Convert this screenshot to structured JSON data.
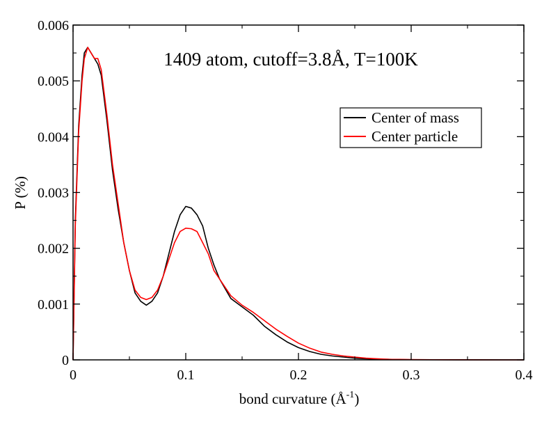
{
  "chart_data": {
    "type": "line",
    "title": "1409 atom, cutoff=3.8Å, T=100K",
    "xlabel": "bond curvature (Å",
    "xlabel_superscript": "-1",
    "xlabel_suffix": ")",
    "ylabel": "P (%)",
    "xlim": [
      0,
      0.4
    ],
    "ylim": [
      0,
      0.006
    ],
    "x_ticks": [
      "0",
      "0.1",
      "0.2",
      "0.3",
      "0.4"
    ],
    "y_ticks": [
      "0",
      "0.001",
      "0.002",
      "0.003",
      "0.004",
      "0.005",
      "0.006"
    ],
    "grid": false,
    "legend_position": "top-right",
    "series": [
      {
        "name": "Center of mass",
        "color": "#000000",
        "x": [
          0,
          0.002,
          0.005,
          0.008,
          0.01,
          0.013,
          0.016,
          0.019,
          0.022,
          0.025,
          0.03,
          0.035,
          0.04,
          0.045,
          0.05,
          0.055,
          0.06,
          0.065,
          0.07,
          0.075,
          0.08,
          0.085,
          0.09,
          0.095,
          0.1,
          0.105,
          0.11,
          0.115,
          0.12,
          0.125,
          0.13,
          0.14,
          0.15,
          0.16,
          0.17,
          0.18,
          0.19,
          0.2,
          0.21,
          0.22,
          0.23,
          0.24,
          0.25,
          0.26,
          0.27,
          0.28,
          0.29,
          0.3,
          0.32,
          0.34,
          0.36,
          0.38,
          0.4
        ],
        "y": [
          0,
          0.0025,
          0.0042,
          0.0051,
          0.0055,
          0.0056,
          0.0055,
          0.0054,
          0.0053,
          0.0051,
          0.0043,
          0.0034,
          0.0027,
          0.0021,
          0.0016,
          0.0012,
          0.00105,
          0.00098,
          0.00105,
          0.0012,
          0.0015,
          0.0019,
          0.0023,
          0.0026,
          0.00275,
          0.00272,
          0.0026,
          0.0024,
          0.002,
          0.0017,
          0.00145,
          0.0011,
          0.00095,
          0.0008,
          0.0006,
          0.00045,
          0.00032,
          0.00022,
          0.00015,
          0.0001,
          7e-05,
          5e-05,
          3e-05,
          2e-05,
          1e-05,
          1e-05,
          5e-06,
          3e-06,
          2e-06,
          1e-06,
          5e-07,
          0,
          0
        ]
      },
      {
        "name": "Center particle",
        "color": "#ff0000",
        "x": [
          0,
          0.002,
          0.005,
          0.008,
          0.01,
          0.013,
          0.016,
          0.019,
          0.022,
          0.025,
          0.03,
          0.035,
          0.04,
          0.045,
          0.05,
          0.055,
          0.06,
          0.065,
          0.07,
          0.075,
          0.08,
          0.085,
          0.09,
          0.095,
          0.1,
          0.105,
          0.11,
          0.115,
          0.12,
          0.125,
          0.13,
          0.14,
          0.15,
          0.16,
          0.17,
          0.18,
          0.19,
          0.2,
          0.21,
          0.22,
          0.23,
          0.24,
          0.25,
          0.26,
          0.27,
          0.28,
          0.29,
          0.3,
          0.32,
          0.34,
          0.36,
          0.38,
          0.4
        ],
        "y": [
          0,
          0.0024,
          0.0041,
          0.005,
          0.0054,
          0.0056,
          0.0055,
          0.0054,
          0.0054,
          0.0052,
          0.0044,
          0.0035,
          0.0028,
          0.0021,
          0.0016,
          0.00125,
          0.00112,
          0.00108,
          0.00112,
          0.00125,
          0.0015,
          0.0018,
          0.0021,
          0.0023,
          0.00236,
          0.00235,
          0.0023,
          0.0021,
          0.0019,
          0.0016,
          0.00145,
          0.00115,
          0.00098,
          0.00085,
          0.0007,
          0.00055,
          0.00042,
          0.0003,
          0.00021,
          0.00014,
          0.0001,
          7e-05,
          5e-05,
          3e-05,
          2e-05,
          1e-05,
          8e-06,
          5e-06,
          3e-06,
          2e-06,
          1e-06,
          0,
          0
        ]
      }
    ]
  }
}
